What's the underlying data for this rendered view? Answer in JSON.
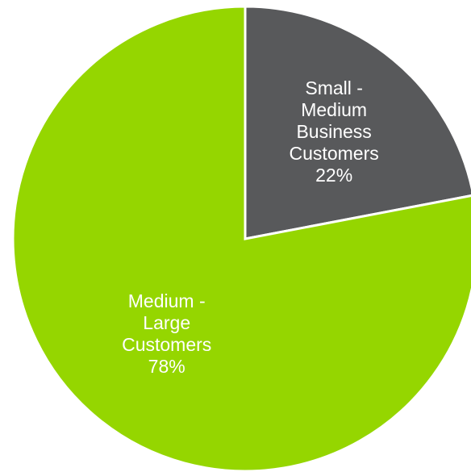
{
  "chart_data": {
    "type": "pie",
    "title": "",
    "slices": [
      {
        "label_lines": [
          "Small -",
          "Medium",
          "Business",
          "Customers"
        ],
        "label": "Small - Medium Business Customers",
        "value": 22,
        "value_label": "22%",
        "color": "#58595b"
      },
      {
        "label_lines": [
          "Medium -",
          "Large",
          "Customers"
        ],
        "label": "Medium - Large Customers",
        "value": 78,
        "value_label": "78%",
        "color": "#95d600"
      }
    ],
    "start_angle": "12 o'clock",
    "direction": "clockwise",
    "legend": "none"
  }
}
